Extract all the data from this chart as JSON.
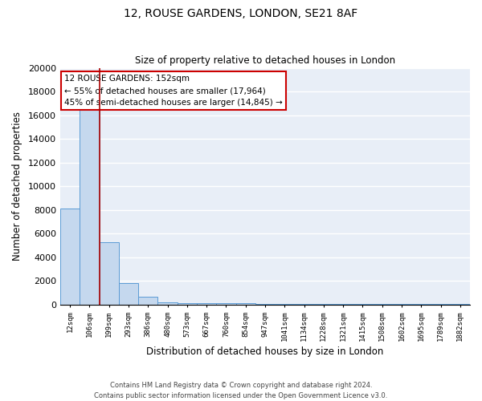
{
  "title1": "12, ROUSE GARDENS, LONDON, SE21 8AF",
  "title2": "Size of property relative to detached houses in London",
  "xlabel": "Distribution of detached houses by size in London",
  "ylabel": "Number of detached properties",
  "bar_color": "#c5d8ee",
  "bar_edge_color": "#5b9bd5",
  "background_color": "#e8eef7",
  "grid_color": "#ffffff",
  "categories": [
    "12sqm",
    "106sqm",
    "199sqm",
    "293sqm",
    "386sqm",
    "480sqm",
    "573sqm",
    "667sqm",
    "760sqm",
    "854sqm",
    "947sqm",
    "1041sqm",
    "1134sqm",
    "1228sqm",
    "1321sqm",
    "1415sqm",
    "1508sqm",
    "1602sqm",
    "1695sqm",
    "1789sqm",
    "1882sqm"
  ],
  "values": [
    8100,
    16500,
    5300,
    1800,
    650,
    200,
    150,
    120,
    100,
    90,
    80,
    70,
    65,
    60,
    55,
    50,
    50,
    45,
    40,
    40,
    80
  ],
  "ylim": [
    0,
    20000
  ],
  "yticks": [
    0,
    2000,
    4000,
    6000,
    8000,
    10000,
    12000,
    14000,
    16000,
    18000,
    20000
  ],
  "red_line_x": 1.5,
  "annotation_text": "12 ROUSE GARDENS: 152sqm\n← 55% of detached houses are smaller (17,964)\n45% of semi-detached houses are larger (14,845) →",
  "annotation_box_color": "#cc0000",
  "footnote": "Contains HM Land Registry data © Crown copyright and database right 2024.\nContains public sector information licensed under the Open Government Licence v3.0."
}
